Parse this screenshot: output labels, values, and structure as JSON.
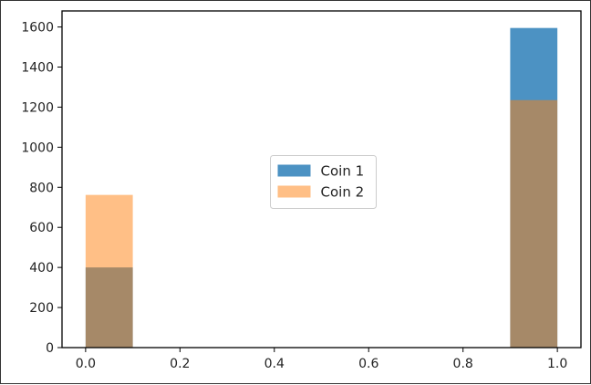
{
  "chart_data": {
    "type": "bar",
    "title": "",
    "xlabel": "",
    "ylabel": "",
    "xlim": [
      -0.05,
      1.05
    ],
    "ylim": [
      0,
      1680
    ],
    "xticks": [
      "0.0",
      "0.2",
      "0.4",
      "0.6",
      "0.8",
      "1.0"
    ],
    "yticks": [
      "0",
      "200",
      "400",
      "600",
      "800",
      "1000",
      "1200",
      "1400",
      "1600"
    ],
    "bins": [
      [
        0.0,
        0.1
      ],
      [
        0.9,
        1.0
      ]
    ],
    "series": [
      {
        "name": "Coin 1",
        "values": [
          400,
          1595
        ],
        "color": "#1f77b4"
      },
      {
        "name": "Coin 2",
        "values": [
          762,
          1235
        ],
        "color": "#ff7f0e"
      }
    ],
    "legend_position": "center",
    "grid": false
  }
}
